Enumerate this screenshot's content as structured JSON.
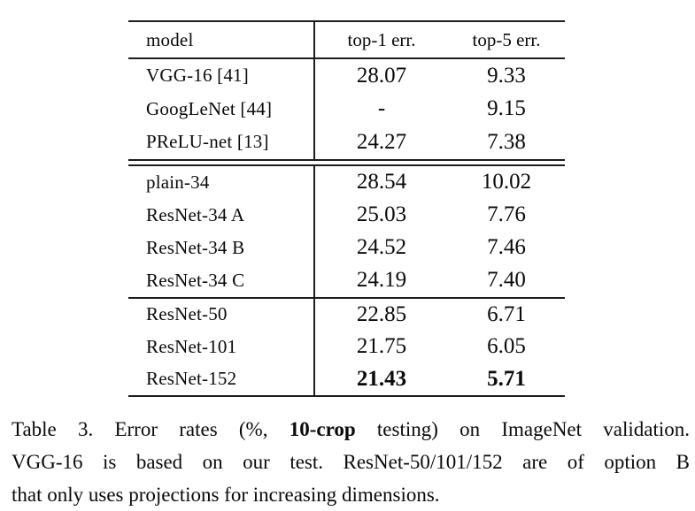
{
  "page": {
    "background": "#ffffff",
    "text_color": "#0a0a0a",
    "rule_color": "#1c1c1c"
  },
  "table": {
    "headers": {
      "model": "model",
      "top1": "top-1 err.",
      "top5": "top-5 err."
    },
    "rows": [
      {
        "model": "VGG-16 [41]",
        "top1": "28.07",
        "top5": "9.33",
        "bold": false
      },
      {
        "model": "GoogLeNet [44]",
        "top1": "-",
        "top5": "9.15",
        "bold": false
      },
      {
        "model": "PReLU-net [13]",
        "top1": "24.27",
        "top5": "7.38",
        "bold": false
      },
      {
        "model": "plain-34",
        "top1": "28.54",
        "top5": "10.02",
        "bold": false
      },
      {
        "model": "ResNet-34 A",
        "top1": "25.03",
        "top5": "7.76",
        "bold": false
      },
      {
        "model": "ResNet-34 B",
        "top1": "24.52",
        "top5": "7.46",
        "bold": false
      },
      {
        "model": "ResNet-34 C",
        "top1": "24.19",
        "top5": "7.40",
        "bold": false
      },
      {
        "model": "ResNet-50",
        "top1": "22.85",
        "top5": "6.71",
        "bold": false
      },
      {
        "model": "ResNet-101",
        "top1": "21.75",
        "top5": "6.05",
        "bold": false
      },
      {
        "model": "ResNet-152",
        "top1": "21.43",
        "top5": "5.71",
        "bold": true
      }
    ]
  },
  "caption": {
    "line1_pre": "Table 3. Error rates (%, ",
    "line1_bold": "10-crop",
    "line1_post": " testing) on ImageNet validation.",
    "line2": "VGG-16 is based on our test. ResNet-50/101/152 are of option B",
    "line3": "that only uses projections for increasing dimensions."
  }
}
